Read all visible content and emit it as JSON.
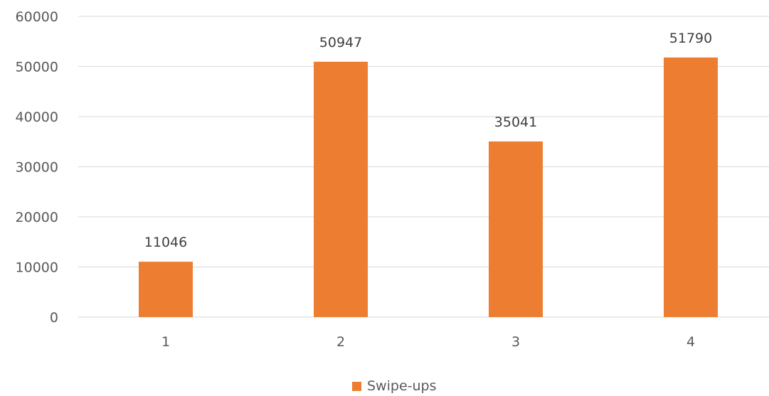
{
  "chart_data": {
    "type": "bar",
    "categories": [
      "1",
      "2",
      "3",
      "4"
    ],
    "series": [
      {
        "name": "Swipe-ups",
        "color": "#ED7D31",
        "values": [
          11046,
          50947,
          35041,
          51790
        ]
      }
    ],
    "ylim": [
      0,
      60000
    ],
    "yticks": [
      0,
      10000,
      20000,
      30000,
      40000,
      50000,
      60000
    ],
    "grid": true,
    "data_labels": true,
    "legend_position": "bottom",
    "gridline_color": "#D9D9D9"
  }
}
